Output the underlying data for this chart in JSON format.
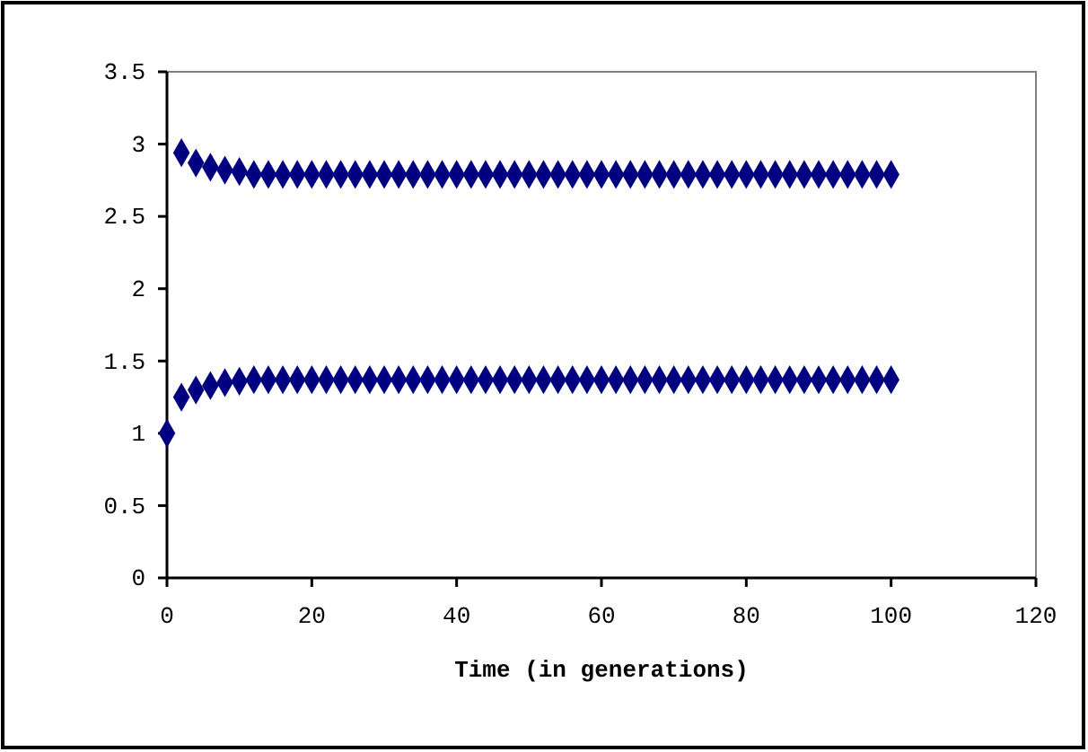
{
  "chart_data": {
    "type": "scatter",
    "xlabel": "Time (in generations)",
    "marker": "diamond",
    "grid": false,
    "xlim": [
      0,
      120
    ],
    "xticks": [
      0,
      20,
      40,
      60,
      80,
      100,
      120
    ],
    "ylim": [
      0,
      3.5
    ],
    "yticks": [
      0,
      0.5,
      1,
      1.5,
      2,
      2.5,
      3,
      3.5
    ],
    "series": [
      {
        "color": "#000080",
        "x": [
          0,
          2,
          4,
          6,
          8,
          10,
          12,
          14,
          16,
          18,
          20,
          22,
          24,
          26,
          28,
          30,
          32,
          34,
          36,
          38,
          40,
          42,
          44,
          46,
          48,
          50,
          52,
          54,
          56,
          58,
          60,
          62,
          64,
          66,
          68,
          70,
          72,
          74,
          76,
          78,
          80,
          82,
          84,
          86,
          88,
          90,
          92,
          94,
          96,
          98,
          100
        ],
        "values": [
          1,
          1.25,
          1.3,
          1.33,
          1.35,
          1.36,
          1.37,
          1.37,
          1.37,
          1.37,
          1.37,
          1.37,
          1.37,
          1.37,
          1.37,
          1.37,
          1.37,
          1.37,
          1.37,
          1.37,
          1.37,
          1.37,
          1.37,
          1.37,
          1.37,
          1.37,
          1.37,
          1.37,
          1.37,
          1.37,
          1.37,
          1.37,
          1.37,
          1.37,
          1.37,
          1.37,
          1.37,
          1.37,
          1.37,
          1.37,
          1.37,
          1.37,
          1.37,
          1.37,
          1.37,
          1.37,
          1.37,
          1.37,
          1.37,
          1.37,
          1.37
        ]
      },
      {
        "color": "#000080",
        "x": [
          2,
          4,
          6,
          8,
          10,
          12,
          14,
          16,
          18,
          20,
          22,
          24,
          26,
          28,
          30,
          32,
          34,
          36,
          38,
          40,
          42,
          44,
          46,
          48,
          50,
          52,
          54,
          56,
          58,
          60,
          62,
          64,
          66,
          68,
          70,
          72,
          74,
          76,
          78,
          80,
          82,
          84,
          86,
          88,
          90,
          92,
          94,
          96,
          98,
          100
        ],
        "values": [
          2.94,
          2.87,
          2.84,
          2.82,
          2.81,
          2.79,
          2.79,
          2.79,
          2.79,
          2.79,
          2.79,
          2.79,
          2.79,
          2.79,
          2.79,
          2.79,
          2.79,
          2.79,
          2.79,
          2.79,
          2.79,
          2.79,
          2.79,
          2.79,
          2.79,
          2.79,
          2.79,
          2.79,
          2.79,
          2.79,
          2.79,
          2.79,
          2.79,
          2.79,
          2.79,
          2.79,
          2.79,
          2.79,
          2.79,
          2.79,
          2.79,
          2.79,
          2.79,
          2.79,
          2.79,
          2.79,
          2.79,
          2.79,
          2.79,
          2.79
        ]
      }
    ]
  }
}
